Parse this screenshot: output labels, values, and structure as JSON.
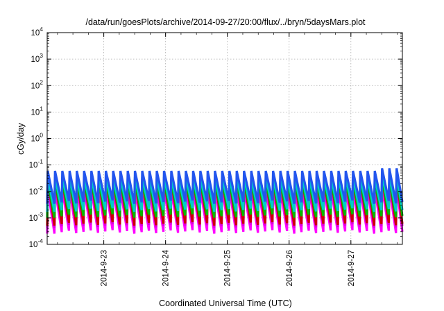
{
  "chart_data": {
    "type": "line",
    "title": "/data/run/goesPlots/archive/2014-09-27/20:00/flux/../bryn/5daysMars.plot",
    "xlabel": "Coordinated Universal Time (UTC)",
    "ylabel": "cGy/day",
    "yscale": "log",
    "ylim": [
      0.0001,
      10000
    ],
    "xlim": [
      "2014-09-22T02:00",
      "2014-09-27T20:00"
    ],
    "grid": true,
    "legend": "none",
    "y_ticks": [
      {
        "base": "10",
        "exp": "-4"
      },
      {
        "base": "10",
        "exp": "-3"
      },
      {
        "base": "10",
        "exp": "-2"
      },
      {
        "base": "10",
        "exp": "-1"
      },
      {
        "base": "10",
        "exp": "0"
      },
      {
        "base": "10",
        "exp": "1"
      },
      {
        "base": "10",
        "exp": "2"
      },
      {
        "base": "10",
        "exp": "3"
      },
      {
        "base": "10",
        "exp": "4"
      }
    ],
    "x_ticks": [
      "2014-9-23",
      "2014-9-24",
      "2014-9-25",
      "2014-9-26",
      "2014-9-27"
    ],
    "oscillation": {
      "cycles_per_day": 8.5,
      "peak_value": 0.06,
      "late_peak_value": 0.075
    },
    "series": [
      {
        "color": "#ff00ff",
        "low": 0.0003,
        "high": 0.012
      },
      {
        "color": "#dd00dd",
        "low": 0.0005,
        "high": 0.018
      },
      {
        "color": "#cc0000",
        "low": 0.0006,
        "high": 0.03
      },
      {
        "color": "#00bb00",
        "low": 0.0012,
        "high": 0.025
      },
      {
        "color": "#00cccc",
        "low": 0.002,
        "high": 0.035
      },
      {
        "color": "#2255ee",
        "low": 0.004,
        "high": 0.06
      }
    ]
  }
}
